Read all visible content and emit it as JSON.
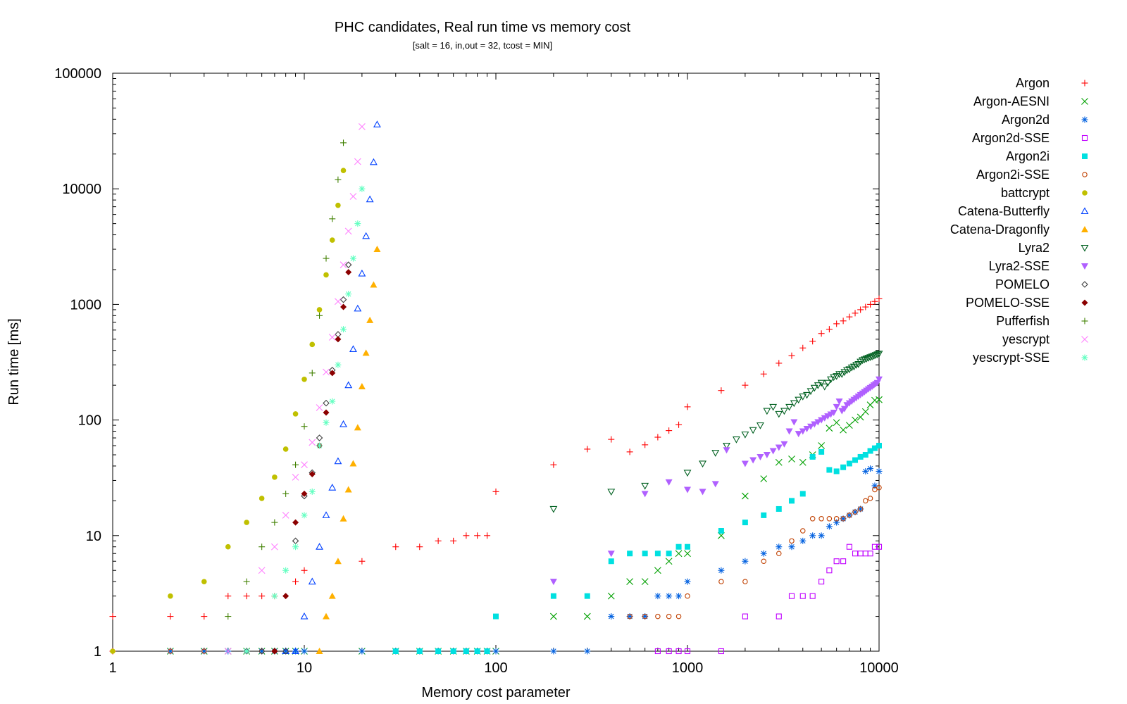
{
  "chart_data": {
    "type": "scatter",
    "title": "PHC candidates, Real run time vs memory cost",
    "subtitle": "[salt = 16, in,out = 32, tcost = MIN]",
    "xlabel": "Memory cost parameter",
    "ylabel": "Run time [ms]",
    "x_scale": "log",
    "y_scale": "log",
    "xlim": [
      1,
      10000
    ],
    "ylim": [
      1,
      100000
    ],
    "x_ticks": [
      "1",
      "10",
      "100",
      "1000",
      "10000"
    ],
    "y_ticks": [
      "1",
      "10",
      "100",
      "1000",
      "10000",
      "100000"
    ],
    "legend_position": "outside-right",
    "series": [
      {
        "name": "Argon",
        "color": "#ff0000",
        "marker": "plus",
        "x": [
          1,
          1,
          2,
          3,
          4,
          5,
          6,
          7,
          9,
          10,
          20,
          30,
          40,
          50,
          60,
          70,
          80,
          90,
          100,
          200,
          300,
          400,
          500,
          600,
          700,
          800,
          900,
          1000,
          1500,
          2000,
          2500,
          3000,
          3500,
          4000,
          4500,
          5000,
          5500,
          6000,
          6500,
          7000,
          7500,
          8000,
          8500,
          9000,
          9500,
          10000
        ],
        "y": [
          1,
          2,
          2,
          2,
          3,
          3,
          3,
          3,
          4,
          5,
          6,
          8,
          8,
          9,
          9,
          10,
          10,
          10,
          24,
          41,
          56,
          68,
          53,
          61,
          71,
          81,
          91,
          130,
          180,
          200,
          250,
          310,
          360,
          420,
          480,
          560,
          610,
          680,
          720,
          780,
          840,
          900,
          950,
          1000,
          1060,
          1120
        ]
      },
      {
        "name": "Argon-AESNI",
        "color": "#00a000",
        "marker": "x",
        "x": [
          2,
          3,
          4,
          5,
          6,
          7,
          8,
          9,
          10,
          20,
          30,
          40,
          50,
          60,
          70,
          80,
          90,
          100,
          200,
          300,
          400,
          500,
          600,
          700,
          800,
          900,
          1000,
          1500,
          2000,
          2500,
          3000,
          3500,
          4000,
          4500,
          5000,
          5500,
          6000,
          6500,
          7000,
          7500,
          8000,
          8500,
          9000,
          9500,
          10000
        ],
        "y": [
          1,
          1,
          1,
          1,
          1,
          1,
          1,
          1,
          1,
          1,
          1,
          1,
          1,
          1,
          1,
          1,
          1,
          1,
          2,
          2,
          3,
          4,
          4,
          5,
          6,
          7,
          7,
          10,
          22,
          31,
          43,
          46,
          43,
          50,
          60,
          85,
          95,
          82,
          90,
          100,
          106,
          118,
          135,
          148,
          150
        ]
      },
      {
        "name": "Argon2d",
        "color": "#0060e0",
        "marker": "star",
        "x": [
          2,
          3,
          4,
          5,
          6,
          7,
          8,
          9,
          10,
          20,
          30,
          40,
          50,
          60,
          70,
          80,
          90,
          100,
          200,
          300,
          400,
          500,
          600,
          700,
          800,
          900,
          1000,
          1500,
          2000,
          2500,
          3000,
          3500,
          4000,
          4500,
          5000,
          5500,
          6000,
          6500,
          7000,
          7500,
          8000,
          8500,
          9000,
          9500,
          10000
        ],
        "y": [
          1,
          1,
          1,
          1,
          1,
          1,
          1,
          1,
          1,
          1,
          1,
          1,
          1,
          1,
          1,
          1,
          1,
          1,
          1,
          1,
          2,
          2,
          2,
          3,
          3,
          3,
          4,
          5,
          6,
          7,
          8,
          8,
          9,
          10,
          10,
          12,
          13,
          14,
          15,
          16,
          17,
          36,
          38,
          27,
          36
        ]
      },
      {
        "name": "Argon2d-SSE",
        "color": "#c000ff",
        "marker": "square-open",
        "x": [
          700,
          800,
          900,
          1000,
          1500,
          2000,
          3000,
          3500,
          4000,
          4500,
          5000,
          5500,
          6000,
          6500,
          7000,
          7500,
          8000,
          8500,
          9000,
          9500,
          10000
        ],
        "y": [
          1,
          1,
          1,
          1,
          1,
          2,
          2,
          3,
          3,
          3,
          4,
          5,
          6,
          6,
          8,
          7,
          7,
          7,
          7,
          8,
          8
        ]
      },
      {
        "name": "Argon2i",
        "color": "#00e0e0",
        "marker": "square",
        "x": [
          30,
          40,
          50,
          60,
          70,
          80,
          90,
          100,
          200,
          300,
          400,
          500,
          600,
          700,
          800,
          900,
          1000,
          1500,
          2000,
          2500,
          3000,
          3500,
          4000,
          4500,
          5000,
          5500,
          6000,
          6500,
          7000,
          7500,
          8000,
          8500,
          9000,
          9500,
          10000
        ],
        "y": [
          1,
          1,
          1,
          1,
          1,
          1,
          1,
          2,
          3,
          3,
          6,
          7,
          7,
          7,
          7,
          8,
          8,
          11,
          13,
          15,
          17,
          20,
          23,
          48,
          53,
          37,
          36,
          39,
          42,
          45,
          48,
          50,
          54,
          57,
          60
        ]
      },
      {
        "name": "Argon2i-SSE",
        "color": "#c04000",
        "marker": "circle-open",
        "x": [
          2,
          3,
          6,
          7,
          500,
          600,
          700,
          800,
          900,
          1000,
          1500,
          2000,
          2500,
          3000,
          3500,
          4000,
          4500,
          5000,
          5500,
          6000,
          6500,
          7000,
          7500,
          8000,
          8500,
          9000,
          9500,
          10000
        ],
        "y": [
          1,
          1,
          1,
          1,
          2,
          2,
          2,
          2,
          2,
          3,
          4,
          4,
          6,
          7,
          9,
          11,
          14,
          14,
          14,
          14,
          14,
          15,
          16,
          17,
          20,
          21,
          25,
          26
        ]
      },
      {
        "name": "battcrypt",
        "color": "#c0c000",
        "marker": "circle",
        "x": [
          1,
          2,
          3,
          4,
          5,
          6,
          7,
          8,
          9,
          10,
          11,
          12,
          13,
          14,
          15,
          16
        ],
        "y": [
          1,
          3,
          4,
          8,
          13,
          21,
          32,
          56,
          113,
          225,
          450,
          900,
          1800,
          3600,
          7200,
          14400
        ]
      },
      {
        "name": "Catena-Butterfly",
        "color": "#0040ff",
        "marker": "triangle-open",
        "x": [
          8,
          9,
          10,
          11,
          12,
          13,
          14,
          15,
          16,
          17,
          18,
          19,
          20,
          21,
          22,
          23,
          24
        ],
        "y": [
          1,
          1,
          2,
          4,
          8,
          15,
          26,
          44,
          92,
          200,
          410,
          920,
          1850,
          3900,
          8100,
          17000,
          36000
        ]
      },
      {
        "name": "Catena-Dragonfly",
        "color": "#ffb000",
        "marker": "triangle",
        "x": [
          12,
          13,
          14,
          15,
          16,
          17,
          18,
          19,
          20,
          21,
          22,
          23,
          24
        ],
        "y": [
          1,
          2,
          3,
          6,
          14,
          25,
          42,
          86,
          195,
          380,
          730,
          1480,
          3000
        ]
      },
      {
        "name": "Lyra2",
        "color": "#006020",
        "marker": "triangle-down-open",
        "x": [
          200,
          400,
          600,
          1000,
          1200,
          1400,
          1600,
          1800,
          2000,
          2200,
          2400,
          2600,
          2800,
          3000,
          3200,
          3400,
          3600,
          3800,
          4000,
          4200,
          4400,
          4600,
          4800,
          5000,
          5200,
          5400,
          5600,
          5800,
          6000,
          6200,
          6400,
          6600,
          6800,
          7000,
          7200,
          7400,
          7600,
          7800,
          8000,
          8200,
          8400,
          8600,
          8800,
          9000,
          9200,
          9400,
          9600,
          9800,
          10000
        ],
        "y": [
          17,
          24,
          27,
          35,
          42,
          52,
          60,
          68,
          75,
          82,
          90,
          120,
          130,
          113,
          120,
          130,
          140,
          150,
          160,
          165,
          178,
          190,
          200,
          210,
          195,
          210,
          225,
          235,
          240,
          250,
          250,
          260,
          270,
          275,
          285,
          290,
          300,
          305,
          320,
          330,
          335,
          340,
          345,
          350,
          355,
          360,
          365,
          370,
          375
        ]
      },
      {
        "name": "Lyra2-SSE",
        "color": "#b060ff",
        "marker": "triangle-down",
        "x": [
          200,
          400,
          600,
          800,
          1000,
          1200,
          1400,
          1600,
          2000,
          2200,
          2400,
          2600,
          2800,
          3000,
          3200,
          3400,
          3600,
          3800,
          4000,
          4200,
          4400,
          4600,
          4800,
          5000,
          5200,
          5400,
          5600,
          5800,
          6000,
          6200,
          6400,
          6600,
          6800,
          7000,
          7200,
          7400,
          7600,
          7800,
          8000,
          8200,
          8400,
          8600,
          8800,
          9000,
          9200,
          9400,
          9600,
          9800,
          10000
        ],
        "y": [
          4,
          7,
          23,
          29,
          25,
          24,
          28,
          55,
          42,
          45,
          48,
          50,
          54,
          58,
          62,
          80,
          96,
          76,
          80,
          84,
          88,
          92,
          96,
          100,
          104,
          108,
          112,
          116,
          130,
          145,
          120,
          125,
          135,
          140,
          145,
          150,
          155,
          160,
          165,
          170,
          175,
          180,
          185,
          190,
          195,
          200,
          205,
          210,
          225
        ]
      },
      {
        "name": "POMELO",
        "color": "#404040",
        "marker": "diamond-open",
        "x": [
          5,
          6,
          7,
          8,
          9,
          10,
          11,
          12,
          13,
          14,
          15,
          16,
          17
        ],
        "y": [
          1,
          1,
          1,
          1,
          9,
          22,
          35,
          70,
          140,
          270,
          550,
          1100,
          2200
        ]
      },
      {
        "name": "POMELO-SSE",
        "color": "#8b0000",
        "marker": "diamond",
        "x": [
          7,
          8,
          9,
          10,
          11,
          12,
          13,
          14,
          15,
          16,
          17
        ],
        "y": [
          1,
          3,
          13,
          23,
          34,
          60,
          116,
          255,
          500,
          950,
          1900
        ]
      },
      {
        "name": "Pufferfish",
        "color": "#408000",
        "marker": "plus",
        "x": [
          4,
          5,
          6,
          7,
          8,
          9,
          10,
          11,
          12,
          13,
          14,
          15,
          16
        ],
        "y": [
          2,
          4,
          8,
          13,
          23,
          41,
          88,
          255,
          800,
          2500,
          5500,
          12000,
          25000
        ]
      },
      {
        "name": "yescrypt",
        "color": "#ff80ff",
        "marker": "x",
        "x": [
          4,
          6,
          7,
          8,
          9,
          10,
          11,
          12,
          13,
          14,
          15,
          16,
          17,
          18,
          19,
          20
        ],
        "y": [
          1,
          5,
          8,
          15,
          32,
          41,
          64,
          128,
          260,
          520,
          1060,
          2200,
          4300,
          8600,
          17200,
          34500
        ]
      },
      {
        "name": "yescrypt-SSE",
        "color": "#60ffc0",
        "marker": "star",
        "x": [
          5,
          7,
          8,
          9,
          10,
          11,
          12,
          13,
          14,
          15,
          16,
          17,
          18,
          19,
          20
        ],
        "y": [
          1,
          3,
          5,
          8,
          15,
          24,
          60,
          95,
          145,
          300,
          610,
          1230,
          2500,
          5000,
          10000
        ]
      }
    ]
  }
}
